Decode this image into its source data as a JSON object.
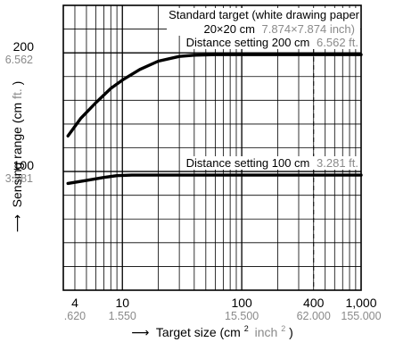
{
  "colors": {
    "ink": "#000000",
    "secondary_text": "#8a8a8a",
    "background": "#ffffff"
  },
  "chart_data": {
    "type": "line",
    "title": "",
    "legend_placement": "none",
    "grid": true,
    "x_axis": {
      "label": "Target size (cm",
      "label_sup": "2",
      "label_secondary": "inch",
      "label_secondary_sup": "2",
      "label_close": ")",
      "arrow": "⟶",
      "scale": "log",
      "range": [
        3.2,
        1000
      ],
      "ticks": [
        {
          "value": 4,
          "label": "4",
          "secondary": ".620"
        },
        {
          "value": 10,
          "label": "10",
          "secondary": "1.550"
        },
        {
          "value": 100,
          "label": "100",
          "secondary": "15.500"
        },
        {
          "value": 400,
          "label": "400",
          "secondary": "62.000"
        },
        {
          "value": 1000,
          "label": "1,000",
          "secondary": "155.000"
        }
      ]
    },
    "y_axis": {
      "label": "Sensing range (cm ",
      "label_secondary": "ft.",
      "label_close": ")",
      "arrow": "⟶",
      "range": [
        0,
        240
      ],
      "ticks": [
        {
          "value": 100,
          "label": "100",
          "secondary": "3.281"
        },
        {
          "value": 200,
          "label": "200",
          "secondary": "6.562"
        }
      ]
    },
    "annotations": {
      "standard_target_line1": "Standard target (white drawing paper",
      "standard_target_line2_main": "20×20 cm",
      "standard_target_line2_secondary": "7.874×7.874 inch)",
      "standard_target_x": 400
    },
    "series": [
      {
        "name": "Distance setting 200 cm",
        "name_secondary": "6.562 ft.",
        "x": [
          3.5,
          4.5,
          6,
          8,
          10,
          14,
          20,
          30,
          40,
          60,
          100,
          200,
          400,
          1000
        ],
        "y": [
          130,
          145,
          158,
          170,
          177,
          186,
          193,
          197,
          198,
          198.5,
          198.5,
          198.5,
          198.5,
          198.5
        ]
      },
      {
        "name": "Distance setting 100 cm",
        "name_secondary": "3.281 ft.",
        "x": [
          3.5,
          5,
          7,
          9,
          12,
          20,
          50,
          100,
          400,
          1000
        ],
        "y": [
          90,
          92.5,
          95,
          96.5,
          97,
          97,
          97,
          97,
          97,
          97
        ]
      }
    ]
  }
}
